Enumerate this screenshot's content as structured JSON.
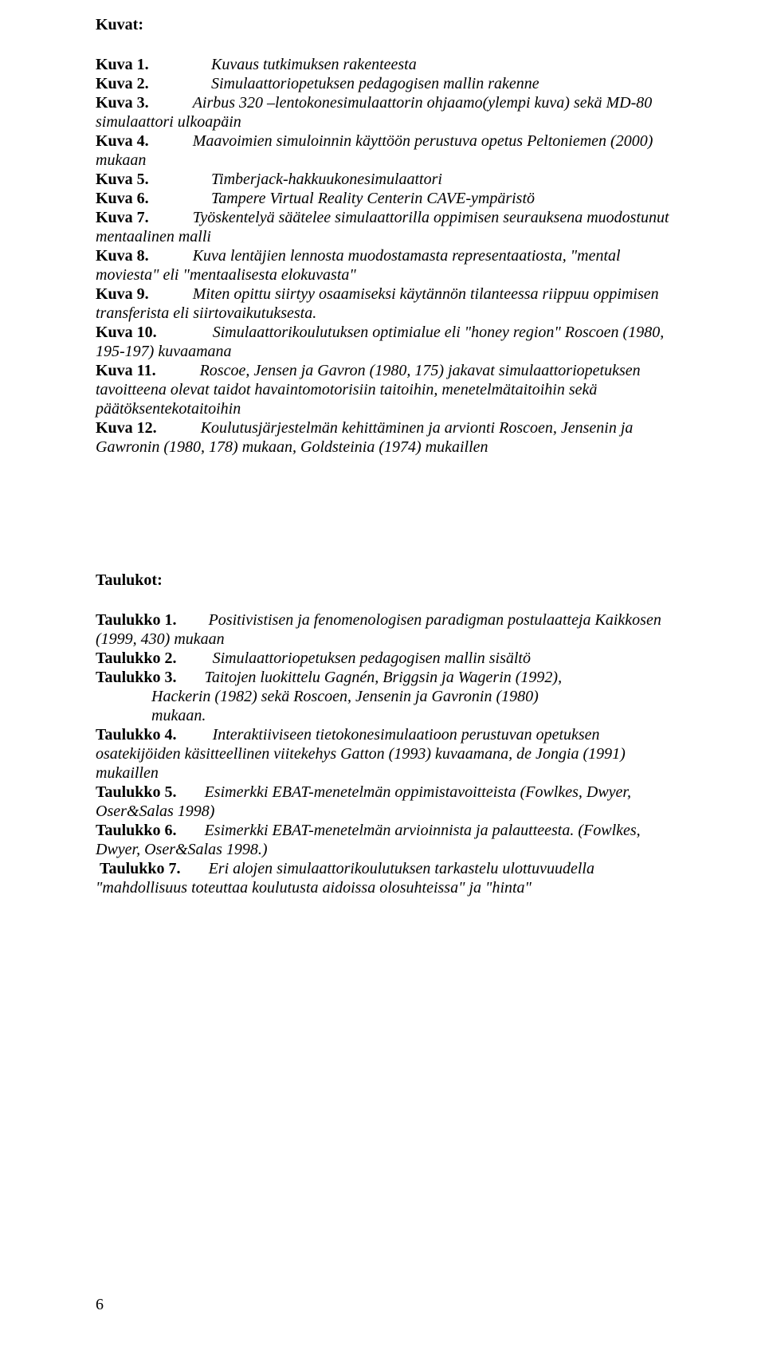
{
  "kuvat": {
    "heading": "Kuvat:",
    "items": [
      {
        "label": "Kuva 1.",
        "text": "Kuvaus tutkimuksen rakenteesta"
      },
      {
        "label": "Kuva 2.",
        "text": "Simulaattoriopetuksen pedagogisen  mallin rakenne"
      },
      {
        "label": "Kuva 3.",
        "text": "Airbus 320 –lentokonesimulaattorin ohjaamo(ylempi kuva) sekä MD-80 simulaattori ulkoapäin"
      },
      {
        "label": "Kuva 4.",
        "text": "Maavoimien simuloinnin käyttöön perustuva opetus Peltoniemen (2000) mukaan"
      },
      {
        "label": "Kuva 5.",
        "text": "Timberjack-hakkuukonesimulaattori"
      },
      {
        "label": "Kuva 6.",
        "text": "Tampere Virtual Reality Centerin CAVE-ympäristö"
      },
      {
        "label": "Kuva 7.",
        "text": "Työskentelyä säätelee simulaattorilla oppimisen seurauksena muodostunut mentaalinen malli"
      },
      {
        "label": "Kuva 8.",
        "text": "Kuva lentäjien lennosta muodostamasta representaatiosta, \"mental moviesta\" eli  \"mentaalisesta elokuvasta\""
      },
      {
        "label": "Kuva 9.",
        "text": "Miten opittu siirtyy osaamiseksi käytännön tilanteessa riippuu oppimisen transferista eli siirtovaikutuksesta."
      },
      {
        "label": "Kuva 10.",
        "text": "Simulaattorikoulutuksen optimialue eli \"honey region\" Roscoen (1980, 195-197) kuvaamana"
      },
      {
        "label": "Kuva 11.",
        "text": "Roscoe, Jensen ja Gavron (1980, 175) jakavat simulaattoriopetuksen tavoitteena olevat taidot havaintomotorisiin taitoihin, menetelmätaitoihin sekä päätöksentekotaitoihin"
      },
      {
        "label": "Kuva 12.",
        "text": "Koulutusjärjestelmän kehittäminen ja arvionti Roscoen, Jensenin ja Gawronin (1980, 178) mukaan, Goldsteinia (1974) mukaillen"
      }
    ]
  },
  "taulukot": {
    "heading": "Taulukot:",
    "items": [
      {
        "label": "Taulukko 1.",
        "text": "Positivistisen ja fenomenologisen paradigman postulaatteja Kaikkosen (1999, 430) mukaan",
        "wrap": true
      },
      {
        "label": "Taulukko 2.",
        "text": "Simulaattoriopetuksen pedagogisen mallin sisältö",
        "wrap": false
      },
      {
        "label": "Taulukko 3.",
        "text": "Taitojen luokittelu Gagnén, Briggsin ja Wagerin (1992), Hackerin  (1982) sekä  Roscoen, Jensenin ja Gavronin (1980) mukaan.",
        "wrap": false,
        "indent": true
      },
      {
        "label": "Taulukko 4.",
        "text": "Interaktiiviseen tietokonesimulaatioon perustuvan opetuksen osatekijöiden  käsitteellinen viitekehys  Gatton (1993) kuvaamana, de Jongia (1991) mukaillen",
        "wrap": true
      },
      {
        "label": "Taulukko 5.",
        "text": "Esimerkki EBAT-menetelmän oppimistavoitteista (Fowlkes, Dwyer, Oser&Salas 1998)",
        "wrap": true
      },
      {
        "label": "Taulukko 6.",
        "text": "Esimerkki EBAT-menetelmän arvioinnista ja palautteesta. (Fowlkes, Dwyer, Oser&Salas 1998.)",
        "wrap": true
      },
      {
        "label": "Taulukko 7.",
        "text": "Eri alojen simulaattorikoulutuksen tarkastelu ulottuvuudella \"mahdollisuus toteuttaa koulutusta aidoissa olosuhteissa\" ja \"hinta\"",
        "wrap": true,
        "preSpace": true
      }
    ]
  },
  "pageNumber": "6"
}
